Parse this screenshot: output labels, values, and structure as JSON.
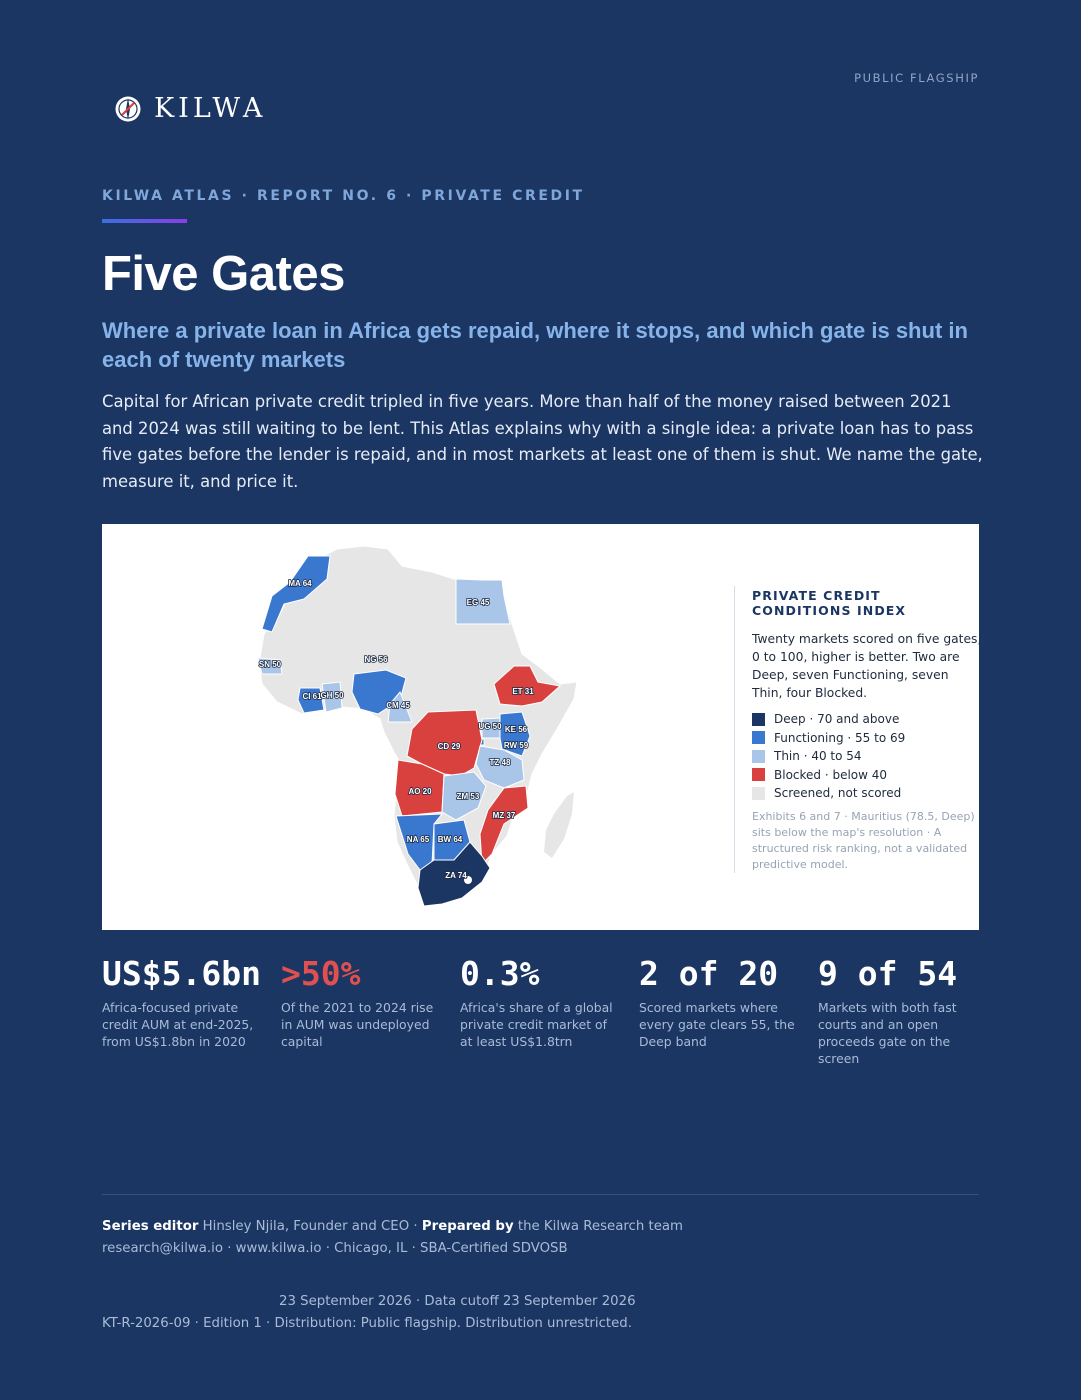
{
  "header": {
    "flag_label": "PUBLIC FLAGSHIP",
    "brand": "KILWA",
    "kicker": "KILWA ATLAS · REPORT NO. 6 · PRIVATE CREDIT"
  },
  "title": "Five Gates",
  "subtitle": "Where a private loan in Africa gets repaid, where it stops, and which gate is shut in each of twenty markets",
  "lede": "Capital for African private credit tripled in five years. More than half of the money raised between 2021 and 2024 was still waiting to be lent. This Atlas explains why with a single idea: a private loan has to pass five gates before the lender is repaid, and in most markets at least one of them is shut. We name the gate, measure it, and price it.",
  "map": {
    "legend_title": "PRIVATE CREDIT CONDITIONS INDEX",
    "legend_description": "Twenty markets scored on five gates, 0 to 100, higher is better. Two are Deep, seven Functioning, seven Thin, four Blocked.",
    "legend_items": [
      {
        "label": "Deep · 70 and above",
        "color": "#1c3663"
      },
      {
        "label": "Functioning · 55 to 69",
        "color": "#3a78d0"
      },
      {
        "label": "Thin · 40 to 54",
        "color": "#a9c5e8"
      },
      {
        "label": "Blocked · below 40",
        "color": "#d9413f"
      },
      {
        "label": "Screened, not scored",
        "color": "#e6e6e6"
      }
    ],
    "note": "Exhibits 6 and 7 · Mauritius (78.5, Deep) sits below the map's resolution · A structured risk ranking, not a validated predictive model.",
    "markets": [
      {
        "code": "MA",
        "score": 64,
        "band": "Functioning",
        "label": "MA 64"
      },
      {
        "code": "EG",
        "score": 45,
        "band": "Thin",
        "label": "EG 45"
      },
      {
        "code": "SN",
        "score": 50,
        "band": "Thin",
        "label": "SN 50"
      },
      {
        "code": "CI",
        "score": 61,
        "band": "Functioning",
        "label": "CI 61"
      },
      {
        "code": "GH",
        "score": 50,
        "band": "Thin",
        "label": "GH 50"
      },
      {
        "code": "NG",
        "score": 56,
        "band": "Functioning",
        "label": "NG 56"
      },
      {
        "code": "CM",
        "score": 45,
        "band": "Thin",
        "label": "CM 45"
      },
      {
        "code": "ET",
        "score": 31,
        "band": "Blocked",
        "label": "ET 31"
      },
      {
        "code": "UG",
        "score": 50,
        "band": "Thin",
        "label": "UG 50"
      },
      {
        "code": "KE",
        "score": 56,
        "band": "Functioning",
        "label": "KE 56"
      },
      {
        "code": "RW",
        "score": 59,
        "band": "Functioning",
        "label": "RW 59"
      },
      {
        "code": "CD",
        "score": 29,
        "band": "Blocked",
        "label": "CD 29"
      },
      {
        "code": "TZ",
        "score": 48,
        "band": "Thin",
        "label": "TZ 48"
      },
      {
        "code": "AO",
        "score": 20,
        "band": "Blocked",
        "label": "AO 20"
      },
      {
        "code": "ZM",
        "score": 53,
        "band": "Thin",
        "label": "ZM 53"
      },
      {
        "code": "MZ",
        "score": 37,
        "band": "Blocked",
        "label": "MZ 37"
      },
      {
        "code": "NA",
        "score": 65,
        "band": "Functioning",
        "label": "NA 65"
      },
      {
        "code": "BW",
        "score": 64,
        "band": "Functioning",
        "label": "BW 64"
      },
      {
        "code": "ZA",
        "score": 74,
        "band": "Deep",
        "label": "ZA 74"
      }
    ]
  },
  "stats": [
    {
      "value": "US$5.6bn",
      "label": "Africa-focused private credit AUM at end-2025, from US$1.8bn in 2020",
      "highlight": false
    },
    {
      "value": ">50%",
      "label": "Of the 2021 to 2024 rise in AUM was undeployed capital",
      "highlight": true
    },
    {
      "value": "0.3%",
      "label": "Africa's share of a global private credit market of at least US$1.8trn",
      "highlight": false
    },
    {
      "value": "2 of 20",
      "label": "Scored markets where every gate clears 55, the Deep band",
      "highlight": false
    },
    {
      "value": "9 of 54",
      "label": "Markets with both fast courts and an open proceeds gate on the screen",
      "highlight": false
    }
  ],
  "footer": {
    "editor_label": "Series editor",
    "editor": "Hinsley Njila, Founder and CEO",
    "sep": "·",
    "prepared_label": "Prepared by",
    "prepared": "the Kilwa Research team",
    "contact": "research@kilwa.io · www.kilwa.io · Chicago, IL · SBA-Certified SDVOSB",
    "dates": "23 September 2026 · Data cutoff 23 September 2026",
    "edition": "KT-R-2026-09 · Edition 1 · Distribution: Public flagship. Distribution unrestricted."
  }
}
